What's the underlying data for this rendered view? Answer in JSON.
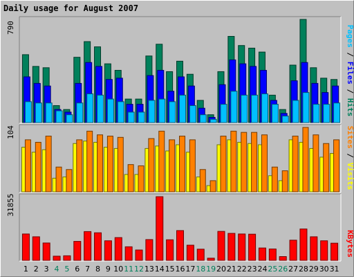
{
  "title": "Daily usage for August 2007",
  "colors": {
    "background": "#c0c0c0",
    "title": "#0000ff",
    "hits": "#00805b",
    "files": "#0000ff",
    "pages": "#00c0ff",
    "visits": "#ffff00",
    "sites": "#ff8000",
    "kbytes": "#ff0000",
    "weekend_label": "#00805b",
    "weekday_label": "#000000",
    "sep_slash": "#000000"
  },
  "axes": {
    "hits_max": "790",
    "visits_max": "104",
    "kbytes_max": "31855"
  },
  "legends": {
    "top": [
      "Pages",
      "Files",
      "Hits"
    ],
    "mid": [
      "Sites",
      "Visits"
    ],
    "bottom": [
      "KBytes"
    ]
  },
  "chart_data": [
    {
      "type": "bar",
      "ylim": [
        0,
        790
      ],
      "categories": [
        "1",
        "2",
        "3",
        "4",
        "5",
        "6",
        "7",
        "8",
        "9",
        "10",
        "11",
        "12",
        "13",
        "14",
        "15",
        "16",
        "17",
        "18",
        "19",
        "20",
        "21",
        "22",
        "23",
        "24",
        "25",
        "26",
        "27",
        "28",
        "29",
        "30",
        "31"
      ],
      "series": [
        {
          "name": "Hits",
          "values": [
            520,
            430,
            420,
            130,
            100,
            500,
            620,
            580,
            450,
            400,
            180,
            180,
            510,
            600,
            390,
            470,
            370,
            170,
            60,
            390,
            660,
            590,
            570,
            540,
            210,
            100,
            440,
            790,
            420,
            340,
            330
          ]
        },
        {
          "name": "Files",
          "values": [
            350,
            300,
            280,
            100,
            80,
            300,
            460,
            430,
            330,
            340,
            140,
            140,
            360,
            400,
            240,
            350,
            280,
            110,
            40,
            290,
            480,
            450,
            430,
            400,
            170,
            70,
            320,
            460,
            300,
            230,
            280
          ]
        },
        {
          "name": "Pages",
          "values": [
            160,
            150,
            150,
            90,
            60,
            150,
            220,
            210,
            180,
            160,
            80,
            80,
            170,
            180,
            160,
            210,
            130,
            60,
            25,
            140,
            240,
            210,
            210,
            220,
            140,
            50,
            170,
            230,
            140,
            140,
            150
          ]
        }
      ]
    },
    {
      "type": "bar",
      "ylim": [
        0,
        104
      ],
      "categories": [
        "1",
        "2",
        "3",
        "4",
        "5",
        "6",
        "7",
        "8",
        "9",
        "10",
        "11",
        "12",
        "13",
        "14",
        "15",
        "16",
        "17",
        "18",
        "19",
        "20",
        "21",
        "22",
        "23",
        "24",
        "25",
        "26",
        "27",
        "28",
        "29",
        "30",
        "31"
      ],
      "series": [
        {
          "name": "Visits",
          "values": [
            72,
            64,
            68,
            22,
            24,
            78,
            82,
            80,
            72,
            70,
            28,
            28,
            70,
            74,
            66,
            76,
            64,
            24,
            10,
            76,
            84,
            80,
            78,
            76,
            26,
            18,
            84,
            80,
            70,
            56,
            62
          ]
        },
        {
          "name": "Sites",
          "values": [
            84,
            80,
            90,
            40,
            36,
            84,
            98,
            92,
            90,
            88,
            44,
            42,
            86,
            98,
            84,
            90,
            84,
            36,
            18,
            90,
            98,
            96,
            96,
            92,
            40,
            34,
            90,
            104,
            92,
            78,
            84
          ]
        }
      ]
    },
    {
      "type": "bar",
      "ylim": [
        0,
        31855
      ],
      "categories": [
        "1",
        "2",
        "3",
        "4",
        "5",
        "6",
        "7",
        "8",
        "9",
        "10",
        "11",
        "12",
        "13",
        "14",
        "15",
        "16",
        "17",
        "18",
        "19",
        "20",
        "21",
        "22",
        "23",
        "24",
        "25",
        "26",
        "27",
        "28",
        "29",
        "30",
        "31"
      ],
      "series": [
        {
          "name": "KBytes",
          "values": [
            13200,
            11800,
            8700,
            2100,
            2300,
            9500,
            14400,
            13800,
            9800,
            11400,
            6800,
            5200,
            10400,
            31855,
            10300,
            14900,
            7600,
            5600,
            1100,
            14500,
            13500,
            13200,
            13100,
            6200,
            5700,
            1900,
            10100,
            15700,
            11800,
            9800,
            8600
          ]
        }
      ]
    }
  ],
  "weekend_days": [
    4,
    5,
    11,
    12,
    18,
    19,
    25,
    26
  ]
}
